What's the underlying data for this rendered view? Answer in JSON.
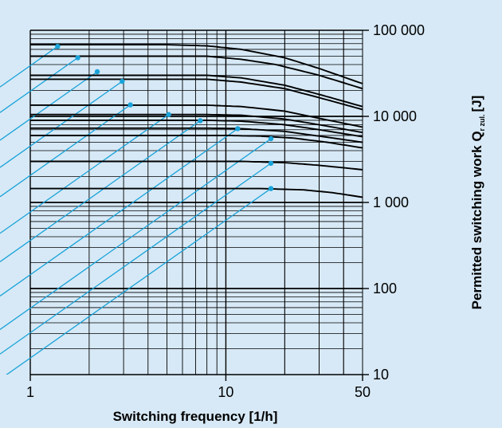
{
  "chart_data": {
    "type": "line",
    "title": "",
    "xlabel": "Switching frequency [1/h]",
    "ylabel": "Permitted switching work Q",
    "ylabel_sub": "r zul.",
    "ylabel_unit": "[J]",
    "xscale": "log",
    "yscale": "log",
    "xlim": [
      1,
      50
    ],
    "ylim": [
      10,
      100000
    ],
    "x_ticks": [
      {
        "value": 1,
        "label": "1"
      },
      {
        "value": 10,
        "label": "10"
      },
      {
        "value": 50,
        "label": "50"
      }
    ],
    "y_ticks": [
      {
        "value": 10,
        "label": "10"
      },
      {
        "value": 100,
        "label": "100"
      },
      {
        "value": 1000,
        "label": "1 000"
      },
      {
        "value": 10000,
        "label": "10 000"
      },
      {
        "value": 100000,
        "label": "100 000"
      }
    ],
    "y_axis_side": "right",
    "grid": true,
    "line_color": "#000000",
    "guide_color": "#1aa3d9",
    "curves": [
      {
        "x": [
          1,
          5,
          8,
          12,
          20,
          30,
          50
        ],
        "y": [
          68000,
          68000,
          66000,
          60000,
          48000,
          36000,
          24000
        ]
      },
      {
        "x": [
          1,
          8,
          12,
          18,
          30,
          50
        ],
        "y": [
          50000,
          50000,
          46000,
          40000,
          30000,
          21000
        ]
      },
      {
        "x": [
          1,
          8,
          12,
          20,
          30,
          50
        ],
        "y": [
          30000,
          30000,
          28000,
          23000,
          18000,
          13000
        ]
      },
      {
        "x": [
          1,
          8,
          12,
          20,
          30,
          50
        ],
        "y": [
          27000,
          27000,
          25000,
          21000,
          16500,
          12000
        ]
      },
      {
        "x": [
          1,
          8,
          12,
          20,
          30,
          50
        ],
        "y": [
          13500,
          13500,
          13000,
          11500,
          9500,
          7500
        ]
      },
      {
        "x": [
          1,
          8,
          12,
          20,
          30,
          50
        ],
        "y": [
          10500,
          10500,
          10300,
          9300,
          8000,
          6500
        ]
      },
      {
        "x": [
          1,
          8,
          12,
          20,
          30,
          50
        ],
        "y": [
          9000,
          9000,
          8800,
          8000,
          7000,
          5800
        ]
      },
      {
        "x": [
          1,
          8,
          12,
          20,
          30,
          50
        ],
        "y": [
          7300,
          7300,
          7200,
          6700,
          5900,
          5000
        ]
      },
      {
        "x": [
          1,
          10,
          15,
          22,
          33,
          50
        ],
        "y": [
          6000,
          6000,
          5900,
          5600,
          5000,
          4300
        ]
      },
      {
        "x": [
          1,
          12,
          20,
          30,
          50
        ],
        "y": [
          3000,
          3000,
          2900,
          2700,
          2400
        ]
      },
      {
        "x": [
          1,
          15,
          25,
          35,
          50
        ],
        "y": [
          1450,
          1450,
          1400,
          1300,
          1150
        ]
      }
    ],
    "guide_lines": [
      {
        "x_end": 1.38,
        "y_end": 65000
      },
      {
        "x_end": 1.75,
        "y_end": 48000
      },
      {
        "x_end": 2.2,
        "y_end": 33000
      },
      {
        "x_end": 2.95,
        "y_end": 25500
      },
      {
        "x_end": 3.25,
        "y_end": 13600
      },
      {
        "x_end": 5.1,
        "y_end": 10500
      },
      {
        "x_end": 7.4,
        "y_end": 8900
      },
      {
        "x_end": 11.5,
        "y_end": 7200
      },
      {
        "x_end": 17.0,
        "y_end": 5500
      },
      {
        "x_end": 17.0,
        "y_end": 2850
      },
      {
        "x_end": 17.0,
        "y_end": 1450
      }
    ],
    "guide_slope_decades_per_decade": 1.6
  }
}
